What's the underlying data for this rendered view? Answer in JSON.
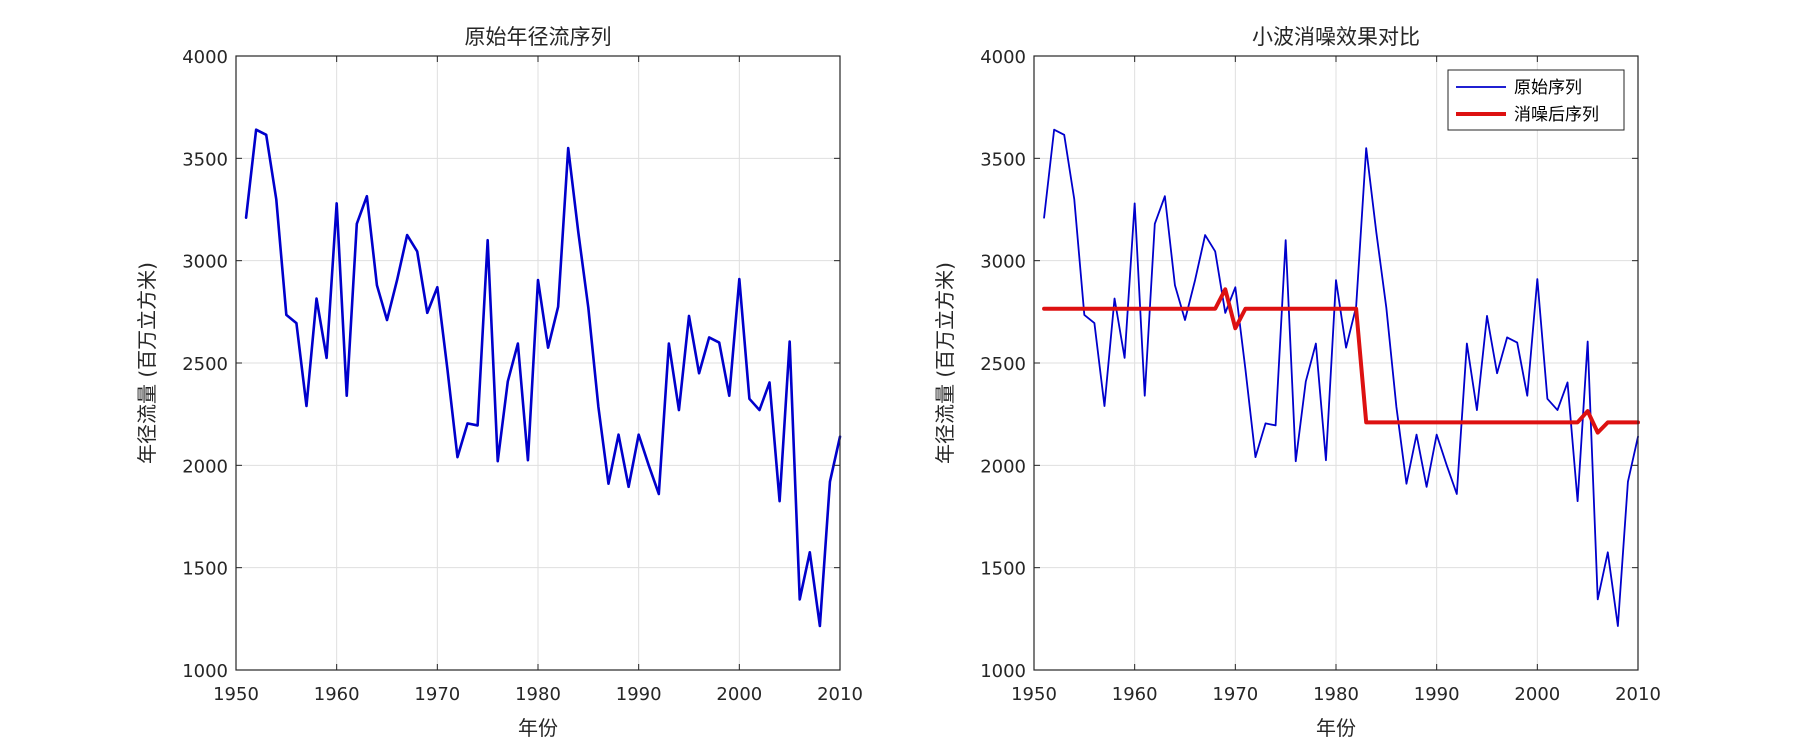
{
  "colors": {
    "original": "#0000cc",
    "denoised": "#dd1111",
    "grid": "#dfdfdf",
    "axis": "#262626"
  },
  "chart_data": [
    {
      "type": "line",
      "title": "原始年径流序列",
      "xlabel": "年份",
      "ylabel": "年径流量 (百万立方米)",
      "xlim": [
        1950,
        2010
      ],
      "ylim": [
        1000,
        4000
      ],
      "xticks": [
        "1950",
        "1960",
        "1970",
        "1980",
        "1990",
        "2000",
        "2010"
      ],
      "yticks": [
        "1000",
        "1500",
        "2000",
        "2500",
        "3000",
        "3500",
        "4000"
      ],
      "grid": true,
      "legend": null,
      "x": [
        1951,
        1952,
        1953,
        1954,
        1955,
        1956,
        1957,
        1958,
        1959,
        1960,
        1961,
        1962,
        1963,
        1964,
        1965,
        1966,
        1967,
        1968,
        1969,
        1970,
        1971,
        1972,
        1973,
        1974,
        1975,
        1976,
        1977,
        1978,
        1979,
        1980,
        1981,
        1982,
        1983,
        1984,
        1985,
        1986,
        1987,
        1988,
        1989,
        1990,
        1991,
        1992,
        1993,
        1994,
        1995,
        1996,
        1997,
        1998,
        1999,
        2000,
        2001,
        2002,
        2003,
        2004,
        2005,
        2006,
        2007,
        2008,
        2009,
        2010
      ],
      "series": [
        {
          "values": [
            3210,
            3640,
            3615,
            3300,
            2735,
            2695,
            2290,
            2815,
            2525,
            3280,
            2340,
            3180,
            3315,
            2880,
            2710,
            2905,
            3125,
            3045,
            2745,
            2870,
            2470,
            2040,
            2205,
            2195,
            3100,
            2020,
            2410,
            2595,
            2025,
            2905,
            2575,
            2775,
            3550,
            3140,
            2770,
            2285,
            1910,
            2150,
            1895,
            2150,
            2000,
            1860,
            2595,
            2270,
            2730,
            2450,
            2625,
            2600,
            2340,
            2910,
            2325,
            2270,
            2405,
            1825,
            2605,
            1345,
            1575,
            1215,
            1920,
            2140
          ]
        }
      ]
    },
    {
      "type": "line",
      "title": "小波消噪效果对比",
      "xlabel": "年份",
      "ylabel": "年径流量 (百万立方米)",
      "xlim": [
        1950,
        2010
      ],
      "ylim": [
        1000,
        4000
      ],
      "xticks": [
        "1950",
        "1960",
        "1970",
        "1980",
        "1990",
        "2000",
        "2010"
      ],
      "yticks": [
        "1000",
        "1500",
        "2000",
        "2500",
        "3000",
        "3500",
        "4000"
      ],
      "grid": true,
      "legend": "top-right",
      "x": [
        1951,
        1952,
        1953,
        1954,
        1955,
        1956,
        1957,
        1958,
        1959,
        1960,
        1961,
        1962,
        1963,
        1964,
        1965,
        1966,
        1967,
        1968,
        1969,
        1970,
        1971,
        1972,
        1973,
        1974,
        1975,
        1976,
        1977,
        1978,
        1979,
        1980,
        1981,
        1982,
        1983,
        1984,
        1985,
        1986,
        1987,
        1988,
        1989,
        1990,
        1991,
        1992,
        1993,
        1994,
        1995,
        1996,
        1997,
        1998,
        1999,
        2000,
        2001,
        2002,
        2003,
        2004,
        2005,
        2006,
        2007,
        2008,
        2009,
        2010
      ],
      "series": [
        {
          "name": "原始序列",
          "values": [
            3210,
            3640,
            3615,
            3300,
            2735,
            2695,
            2290,
            2815,
            2525,
            3280,
            2340,
            3180,
            3315,
            2880,
            2710,
            2905,
            3125,
            3045,
            2745,
            2870,
            2470,
            2040,
            2205,
            2195,
            3100,
            2020,
            2410,
            2595,
            2025,
            2905,
            2575,
            2775,
            3550,
            3140,
            2770,
            2285,
            1910,
            2150,
            1895,
            2150,
            2000,
            1860,
            2595,
            2270,
            2730,
            2450,
            2625,
            2600,
            2340,
            2910,
            2325,
            2270,
            2405,
            1825,
            2605,
            1345,
            1575,
            1215,
            1920,
            2140
          ]
        },
        {
          "name": "消噪后序列",
          "values": [
            2765,
            2765,
            2765,
            2765,
            2765,
            2765,
            2765,
            2765,
            2765,
            2765,
            2765,
            2765,
            2765,
            2765,
            2765,
            2765,
            2765,
            2765,
            2860,
            2670,
            2765,
            2765,
            2765,
            2765,
            2765,
            2765,
            2765,
            2765,
            2765,
            2765,
            2765,
            2765,
            2210,
            2210,
            2210,
            2210,
            2210,
            2210,
            2210,
            2210,
            2210,
            2210,
            2210,
            2210,
            2210,
            2210,
            2210,
            2210,
            2210,
            2210,
            2210,
            2210,
            2210,
            2210,
            2265,
            2160,
            2210,
            2210,
            2210,
            2210
          ]
        }
      ]
    }
  ]
}
